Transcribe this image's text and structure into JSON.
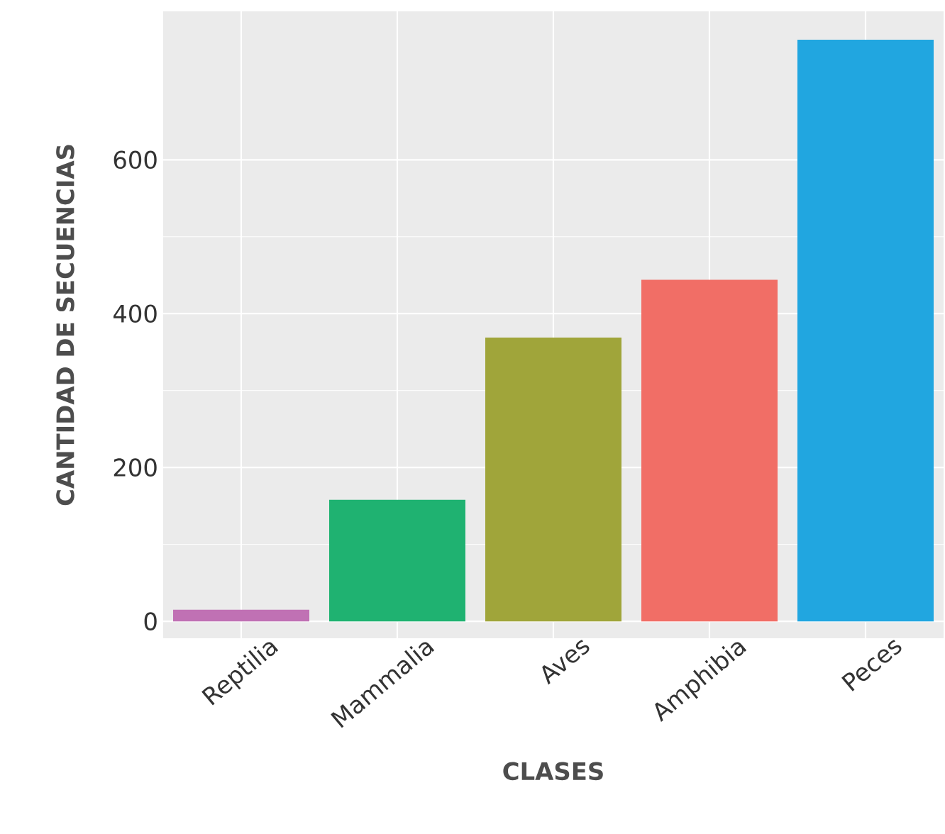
{
  "chart_data": {
    "type": "bar",
    "xlabel": "CLASES",
    "ylabel": "CANTIDAD DE SECUENCIAS",
    "categories": [
      "Reptilia",
      "Mammalia",
      "Aves",
      "Amphibia",
      "Peces"
    ],
    "values": [
      15,
      158,
      369,
      444,
      756
    ],
    "colors": [
      "#c071b4",
      "#1fb271",
      "#a0a53a",
      "#f16e66",
      "#21a6e0"
    ],
    "ylim": [
      -22,
      793
    ],
    "yticks": [
      0,
      200,
      400,
      600
    ],
    "grid": true
  }
}
